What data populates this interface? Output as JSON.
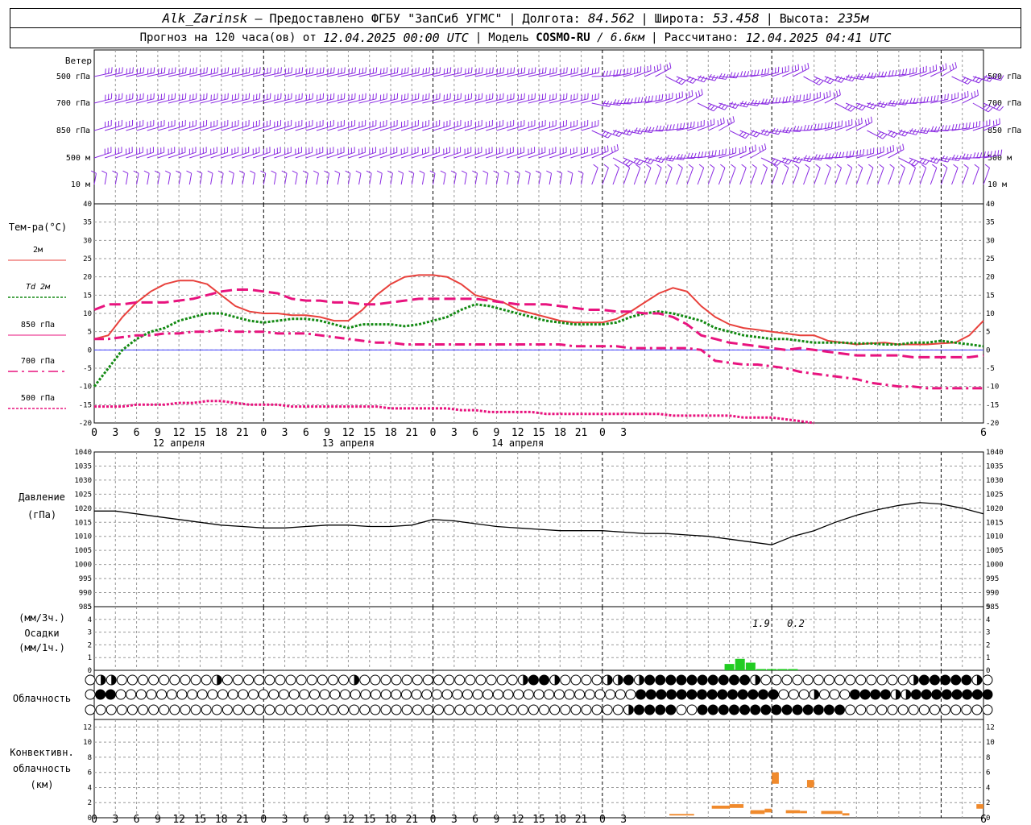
{
  "header": {
    "station": "Alk_Zarinsk",
    "provider": "– Предоставлено ФГБУ \"ЗапСиб УГМС\"",
    "lon_label": "Долгота:",
    "lon": "84.562",
    "lat_label": "Широта:",
    "lat": "53.458",
    "alt_label": "Высота:",
    "alt": "235м",
    "forecast_label": "Прогноз на 120 часа(ов) от",
    "forecast_start": "12.04.2025 00:00 UTC",
    "model_label": "Модель",
    "model": "COSMO-RU",
    "resolution": "/ 6.6км",
    "calc_label": "Рассчитано:",
    "calc_time": "12.04.2025 04:41 UTC"
  },
  "wind_panel": {
    "title": "Ветер",
    "levels": [
      "500 гПа",
      "700 гПа",
      "850 гПа",
      "500 м",
      "10 м"
    ]
  },
  "time_axis": {
    "hour_labels": [
      "0",
      "3",
      "6",
      "9",
      "12",
      "15",
      "18",
      "21",
      "0",
      "3",
      "6",
      "9",
      "12",
      "15",
      "18",
      "21",
      "0",
      "3",
      "6",
      "9",
      "12",
      "15",
      "18",
      "21",
      "0",
      "3",
      "6"
    ],
    "day_labels": [
      "12 апреля",
      "13 апреля",
      "14 апреля"
    ]
  },
  "temp_panel": {
    "title": "Тем-ра(°С)",
    "legend": [
      "2м",
      "Td  2м",
      "850 гПа",
      "700 гПа",
      "500 гПа"
    ],
    "colors": {
      "t2m": "#e8413c",
      "td2m": "#138a13",
      "t850": "#e8137e",
      "t700": "#e8137e",
      "t500": "#e8137e",
      "zero": "#4040ff"
    }
  },
  "pressure_panel": {
    "title": "Давление",
    "unit": "(гПа)"
  },
  "precip_panel": {
    "unit_3h": "(мм/3ч.)",
    "title": "Осадки",
    "unit_1h": "(мм/1ч.)",
    "annotations": [
      "1.9",
      "0.2"
    ],
    "color": "#22cc22"
  },
  "cloud_panel": {
    "title": "Облачность"
  },
  "conv_panel": {
    "title_1": "Конвективн.",
    "title_2": "облачность",
    "unit": "(км)",
    "color": "#f08a2c"
  },
  "chart_data": [
    {
      "type": "line",
      "title": "Тем-ра(°С)",
      "x_unit": "hours since 12.04.2025 00:00 UTC",
      "ylim": [
        -20,
        40
      ],
      "yticks": [
        -20,
        -15,
        -10,
        -5,
        0,
        5,
        10,
        15,
        20,
        25,
        30,
        35,
        40
      ],
      "grid": true,
      "series": [
        {
          "name": "2м",
          "style": "solid",
          "color": "#e8413c",
          "x": [
            0,
            2,
            4,
            6,
            8,
            10,
            12,
            14,
            16,
            18,
            20,
            22,
            24,
            26,
            28,
            30,
            32,
            34,
            36,
            38,
            40,
            42,
            44,
            46,
            48,
            50,
            52,
            54,
            56,
            58,
            60,
            62,
            64,
            66,
            68,
            70,
            72,
            74,
            76,
            78,
            80,
            82,
            84,
            86,
            88,
            90,
            92,
            94,
            96,
            98,
            100,
            102,
            104,
            106,
            108,
            110,
            112,
            114,
            116,
            118,
            120,
            122,
            124,
            126
          ],
          "y": [
            3,
            4,
            9,
            13,
            16,
            18,
            19,
            19,
            18,
            15,
            12,
            10.5,
            10,
            10,
            9.5,
            9.5,
            9,
            8,
            8,
            11,
            15,
            18,
            20,
            20.5,
            20.5,
            20,
            18,
            15,
            14,
            13,
            11,
            10,
            9,
            8,
            7.5,
            7.5,
            7.5,
            8.5,
            10.5,
            13,
            15.5,
            17,
            16,
            12,
            9,
            7,
            6,
            5.5,
            5,
            4.5,
            4,
            4,
            2.5,
            2,
            1.5,
            1.8,
            2,
            1.5,
            1.5,
            1.5,
            1.8,
            2,
            4,
            8
          ]
        },
        {
          "name": "Td  2м",
          "style": "dotted",
          "color": "#138a13",
          "x": [
            0,
            2,
            4,
            6,
            8,
            10,
            12,
            14,
            16,
            18,
            20,
            22,
            24,
            26,
            28,
            30,
            32,
            34,
            36,
            38,
            40,
            42,
            44,
            46,
            48,
            50,
            52,
            54,
            56,
            58,
            60,
            62,
            64,
            66,
            68,
            70,
            72,
            74,
            76,
            78,
            80,
            82,
            84,
            86,
            88,
            90,
            92,
            94,
            96,
            98,
            100,
            102,
            104,
            106,
            108,
            110,
            112,
            114,
            116,
            118,
            120,
            122,
            124,
            126
          ],
          "y": [
            -10,
            -5,
            0,
            3,
            5,
            6,
            8,
            9,
            10,
            10,
            9,
            8,
            7.5,
            8,
            8.5,
            8.5,
            8,
            7,
            6,
            7,
            7,
            7,
            6.5,
            7,
            8,
            9,
            11,
            12.5,
            12,
            11,
            10,
            9,
            8,
            7.5,
            7,
            7,
            7,
            7.5,
            9,
            10,
            10.5,
            10,
            9,
            8,
            6,
            5,
            4,
            3.5,
            3,
            3,
            2.5,
            2,
            2,
            2,
            1.8,
            1.8,
            1.5,
            1.5,
            2,
            2,
            2.5,
            2,
            1.5,
            1
          ]
        },
        {
          "name": "850 гПа",
          "style": "dashed",
          "color": "#e8137e",
          "x": [
            0,
            2,
            4,
            6,
            8,
            10,
            12,
            14,
            16,
            18,
            20,
            22,
            24,
            26,
            28,
            30,
            32,
            34,
            36,
            38,
            40,
            42,
            44,
            46,
            48,
            50,
            52,
            54,
            56,
            58,
            60,
            62,
            64,
            66,
            68,
            70,
            72,
            74,
            76,
            78,
            80,
            82,
            84,
            86,
            88,
            90,
            92,
            94,
            96,
            98,
            100,
            102,
            104,
            106,
            108,
            110,
            112,
            114,
            116,
            118,
            120,
            122,
            124,
            126
          ],
          "y": [
            11,
            12.5,
            12.5,
            13,
            13,
            13,
            13.5,
            14,
            15,
            16,
            16.5,
            16.5,
            16,
            15.5,
            14,
            13.5,
            13.5,
            13,
            13,
            12.5,
            12.5,
            13,
            13.5,
            14,
            14,
            14,
            14,
            14,
            13.5,
            13,
            12.5,
            12.5,
            12.5,
            12,
            11.5,
            11,
            11,
            10.5,
            10.5,
            10,
            10,
            9,
            7,
            4,
            3,
            2,
            1.5,
            1,
            0.5,
            0,
            0.5,
            0,
            -0.5,
            -1,
            -1.5,
            -1.5,
            -1.5,
            -1.5,
            -2,
            -2,
            -2,
            -2,
            -2,
            -1.5
          ]
        },
        {
          "name": "700 гПа",
          "style": "dashdot",
          "color": "#e8137e",
          "x": [
            0,
            2,
            4,
            6,
            8,
            10,
            12,
            14,
            16,
            18,
            20,
            22,
            24,
            26,
            28,
            30,
            32,
            34,
            36,
            38,
            40,
            42,
            44,
            46,
            48,
            50,
            52,
            54,
            56,
            58,
            60,
            62,
            64,
            66,
            68,
            70,
            72,
            74,
            76,
            78,
            80,
            82,
            84,
            86,
            88,
            90,
            92,
            94,
            96,
            98,
            100,
            102,
            104,
            106,
            108,
            110,
            112,
            114,
            116,
            118,
            120,
            122,
            124,
            126
          ],
          "y": [
            3,
            3,
            3.5,
            4,
            4,
            4.5,
            4.5,
            5,
            5,
            5.5,
            5,
            5,
            5,
            4.5,
            4.5,
            4.5,
            4,
            3.5,
            3,
            2.5,
            2,
            2,
            1.5,
            1.5,
            1.5,
            1.5,
            1.5,
            1.5,
            1.5,
            1.5,
            1.5,
            1.5,
            1.5,
            1.5,
            1,
            1,
            1,
            1,
            0.5,
            0.5,
            0.5,
            0.5,
            0.5,
            0,
            -3,
            -3.5,
            -4,
            -4,
            -4.5,
            -5,
            -6,
            -6.5,
            -7,
            -7.5,
            -8,
            -9,
            -9.5,
            -10,
            -10,
            -10.5,
            -10.5,
            -10.5,
            -10.5,
            -10.5
          ]
        },
        {
          "name": "500 гПа",
          "style": "dotted",
          "color": "#e8137e",
          "x": [
            0,
            2,
            4,
            6,
            8,
            10,
            12,
            14,
            16,
            18,
            20,
            22,
            24,
            26,
            28,
            30,
            32,
            34,
            36,
            38,
            40,
            42,
            44,
            46,
            48,
            50,
            52,
            54,
            56,
            58,
            60,
            62,
            64,
            66,
            68,
            70,
            72,
            74,
            76,
            78,
            80,
            82,
            84,
            86,
            88,
            90,
            92,
            94,
            96,
            98,
            100,
            102
          ],
          "y": [
            -15.5,
            -15.5,
            -15.5,
            -15,
            -15,
            -15,
            -14.5,
            -14.5,
            -14,
            -14,
            -14.5,
            -15,
            -15,
            -15,
            -15.5,
            -15.5,
            -15.5,
            -15.5,
            -15.5,
            -15.5,
            -15.5,
            -16,
            -16,
            -16,
            -16,
            -16,
            -16.5,
            -16.5,
            -17,
            -17,
            -17,
            -17,
            -17.5,
            -17.5,
            -17.5,
            -17.5,
            -17.5,
            -17.5,
            -17.5,
            -17.5,
            -17.5,
            -18,
            -18,
            -18,
            -18,
            -18,
            -18.5,
            -18.5,
            -18.5,
            -19,
            -19.5,
            -20
          ]
        }
      ]
    },
    {
      "type": "line",
      "title": "Давление",
      "ylabel": "(гПа)",
      "ylim": [
        985,
        1040
      ],
      "yticks": [
        985,
        990,
        995,
        1000,
        1005,
        1010,
        1015,
        1020,
        1025,
        1030,
        1035,
        1040
      ],
      "grid": true,
      "series": [
        {
          "name": "",
          "color": "#000000",
          "x": [
            0,
            3,
            6,
            9,
            12,
            15,
            18,
            21,
            24,
            27,
            30,
            33,
            36,
            39,
            42,
            45,
            48,
            51,
            54,
            57,
            60,
            63,
            66,
            69,
            72,
            75,
            78,
            81,
            84,
            87,
            90,
            93,
            96,
            99,
            102,
            105,
            108,
            111,
            114,
            117,
            120,
            123,
            126
          ],
          "y": [
            1019,
            1019,
            1018,
            1017,
            1016,
            1015,
            1014,
            1013.5,
            1013,
            1013,
            1013.5,
            1014,
            1014,
            1013.5,
            1013.5,
            1014,
            1016,
            1015.5,
            1014.5,
            1013.5,
            1013,
            1012.5,
            1012,
            1012,
            1012,
            1011.5,
            1011,
            1011,
            1010.5,
            1010,
            1009,
            1008,
            1007,
            1010,
            1012,
            1015,
            1017.5,
            1019.5,
            1021,
            1022,
            1021.5,
            1020,
            1018
          ]
        }
      ]
    },
    {
      "type": "bar",
      "title": "Осадки",
      "ylabel": "(мм/1ч.)",
      "ylim": [
        0,
        5
      ],
      "yticks": [
        0,
        1,
        2,
        3,
        4,
        5
      ],
      "series": [
        {
          "name": "",
          "color": "#22cc22",
          "x": [
            90,
            91.5,
            93,
            94.5,
            96,
            97.5,
            99,
            100.5
          ],
          "y": [
            0.5,
            0.9,
            0.6,
            0.1,
            0.1,
            0.1,
            0.1,
            0
          ]
        }
      ],
      "annotations": [
        {
          "x": 91.5,
          "text": "1.9"
        },
        {
          "x": 96.5,
          "text": "0.2"
        }
      ]
    },
    {
      "type": "bar",
      "title": "Конвективн. облачность",
      "ylabel": "(км)",
      "ylim": [
        0,
        13
      ],
      "yticks": [
        0,
        2,
        4,
        6,
        8,
        10,
        12
      ],
      "bars": [
        {
          "x0": 81.5,
          "x1": 85,
          "bottom": 0.3,
          "top": 0.5
        },
        {
          "x0": 87.5,
          "x1": 90,
          "bottom": 1.2,
          "top": 1.6
        },
        {
          "x0": 90,
          "x1": 92,
          "bottom": 1.3,
          "top": 1.8
        },
        {
          "x0": 93,
          "x1": 95,
          "bottom": 0.5,
          "top": 1.0
        },
        {
          "x0": 95,
          "x1": 96,
          "bottom": 0.7,
          "top": 1.2
        },
        {
          "x0": 96,
          "x1": 97,
          "bottom": 4.5,
          "top": 6.0
        },
        {
          "x0": 98,
          "x1": 100,
          "bottom": 0.6,
          "top": 1.0
        },
        {
          "x0": 100,
          "x1": 101,
          "bottom": 0.6,
          "top": 0.9
        },
        {
          "x0": 101,
          "x1": 102,
          "bottom": 4.0,
          "top": 5.0
        },
        {
          "x0": 103,
          "x1": 106,
          "bottom": 0.5,
          "top": 0.9
        },
        {
          "x0": 106,
          "x1": 107,
          "bottom": 0.3,
          "top": 0.6
        },
        {
          "x0": 125,
          "x1": 126,
          "bottom": 1.2,
          "top": 1.8
        }
      ]
    }
  ],
  "cloud_rows": [
    "ohhooooooooohoooooooooooohooooooooooooooohffhoooohhfhffffffffffhoooooooooooooohfffffho",
    "offoooooooooooooooooooooooooooooooooooooooooooooooooooffffffffffffffooohoooffffhhffffffff",
    "ooooooooooooooooooooooooooooooooooooooooooooooooooohffffooffffffffffffffoooooooooooooo"
  ]
}
